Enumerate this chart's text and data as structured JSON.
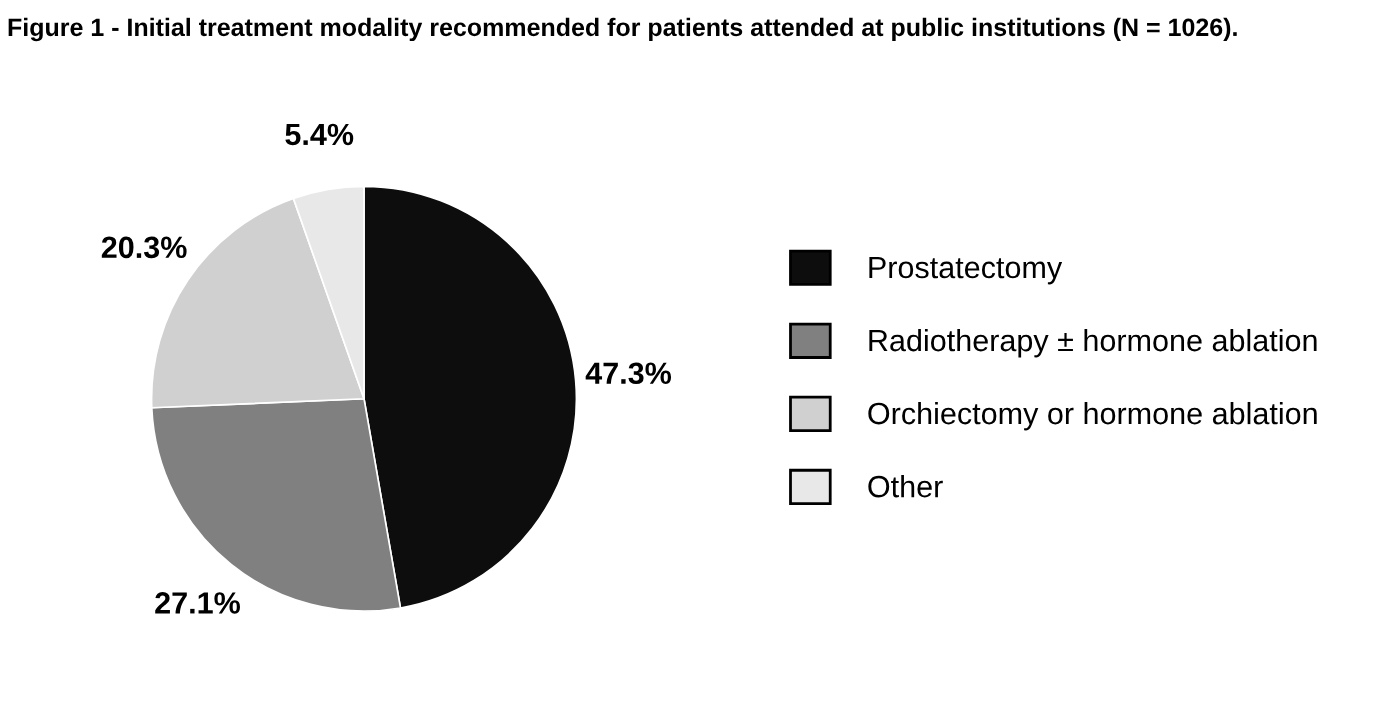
{
  "chart_data": {
    "type": "pie",
    "title": "Figure 1 - Initial treatment modality recommended for patients attended at public institutions (N = 1026).",
    "categories": [
      "Prostatectomy",
      "Radiotherapy ± hormone ablation",
      "Orchiectomy or hormone ablation",
      "Other"
    ],
    "values": [
      47.3,
      27.1,
      20.3,
      5.4
    ],
    "colors": [
      "#0d0d0d",
      "#808080",
      "#d0d0d0",
      "#e8e8e8"
    ],
    "value_labels": [
      "47.3%",
      "27.1%",
      "20.3%",
      "5.4%"
    ],
    "legend": "right"
  }
}
